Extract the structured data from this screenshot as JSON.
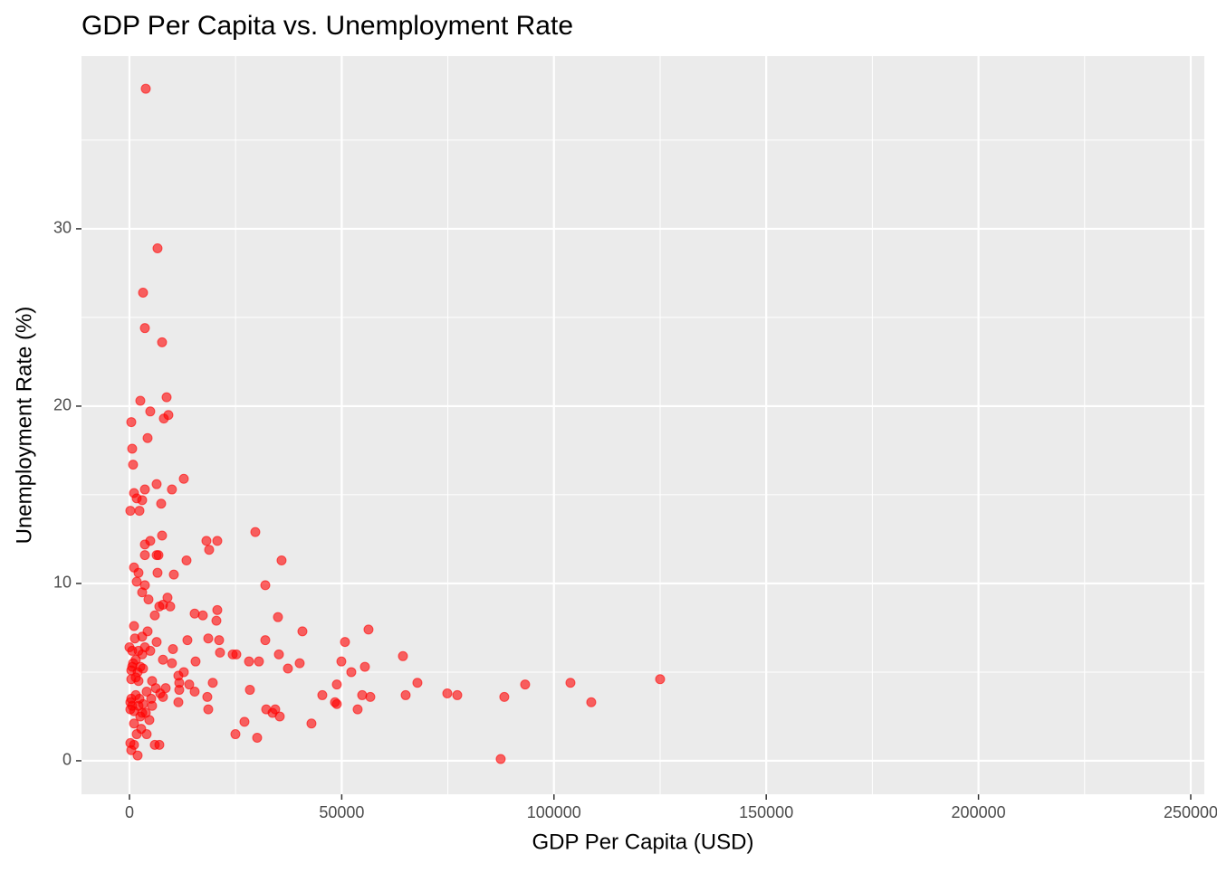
{
  "chart_data": {
    "type": "scatter",
    "title": "GDP Per Capita vs. Unemployment Rate",
    "x_label": "GDP Per Capita (USD)",
    "y_label": "Unemployment Rate (%)",
    "color": "#ff0000",
    "alpha": 0.6,
    "grid": true,
    "xlim": [
      -11300,
      253200
    ],
    "xticks": [
      0,
      50000,
      100000,
      150000,
      200000,
      250000
    ],
    "ylim": [
      -1.89,
      39.74
    ],
    "yticks": [
      0,
      10,
      20,
      30
    ],
    "x": [
      3840,
      6610,
      3200,
      3630,
      7680,
      2560,
      8750,
      4900,
      8100,
      9170,
      430,
      640,
      850,
      4270,
      6400,
      12800,
      3630,
      10000,
      1070,
      1710,
      2990,
      7470,
      210,
      2350,
      29650,
      7680,
      4900,
      3630,
      18130,
      20690,
      18770,
      6400,
      6830,
      3630,
      13440,
      35830,
      1070,
      2130,
      6610,
      10450,
      1710,
      3630,
      32000,
      2990,
      8960,
      4480,
      7040,
      7890,
      9600,
      20690,
      15360,
      17280,
      5970,
      34980,
      20480,
      1070,
      4270,
      40740,
      56310,
      2990,
      1280,
      18560,
      6400,
      13650,
      32000,
      21120,
      50770,
      0,
      10240,
      3630,
      4900,
      640,
      21330,
      2130,
      2990,
      24320,
      25170,
      35200,
      64420,
      1490,
      7890,
      850,
      10000,
      15570,
      28160,
      30500,
      40100,
      49920,
      640,
      2560,
      3200,
      37330,
      55460,
      52260,
      12800,
      430,
      1920,
      11520,
      1490,
      430,
      2130,
      5330,
      125000,
      103880,
      67830,
      11730,
      19620,
      14080,
      48850,
      93210,
      6190,
      8530,
      11730,
      28370,
      7250,
      1490,
      4050,
      15360,
      45430,
      54820,
      65060,
      74870,
      77220,
      56740,
      88300,
      18340,
      7890,
      430,
      2350,
      5120,
      210,
      48420,
      11520,
      108780,
      3200,
      640,
      48850,
      2130,
      5330,
      210,
      18560,
      34340,
      53750,
      32210,
      1070,
      2990,
      3840,
      33700,
      2560,
      35400,
      4690,
      27090,
      1070,
      42870,
      1710,
      4050,
      24960,
      30080,
      210,
      5970,
      7040,
      430,
      1920,
      87450,
      1070,
      2770
    ],
    "values": [
      37.9,
      28.9,
      26.4,
      24.4,
      23.6,
      20.3,
      20.5,
      19.7,
      19.3,
      19.5,
      19.1,
      17.6,
      16.7,
      18.2,
      15.6,
      15.9,
      15.3,
      15.3,
      15.1,
      14.8,
      14.7,
      14.5,
      14.1,
      14.1,
      12.9,
      12.7,
      12.4,
      12.2,
      12.4,
      12.4,
      11.9,
      11.6,
      11.6,
      11.6,
      11.3,
      11.3,
      10.9,
      10.6,
      10.6,
      10.5,
      10.1,
      9.9,
      9.9,
      9.5,
      9.2,
      9.1,
      8.7,
      8.8,
      8.7,
      8.5,
      8.3,
      8.2,
      8.2,
      8.1,
      7.9,
      7.6,
      7.3,
      7.3,
      7.4,
      7.0,
      6.9,
      6.9,
      6.7,
      6.8,
      6.8,
      6.8,
      6.7,
      6.4,
      6.3,
      6.4,
      6.2,
      6.2,
      6.1,
      6.2,
      6.0,
      6.0,
      6.0,
      6.0,
      5.9,
      5.7,
      5.7,
      5.5,
      5.5,
      5.6,
      5.6,
      5.6,
      5.5,
      5.6,
      5.3,
      5.3,
      5.2,
      5.2,
      5.3,
      5.0,
      5.0,
      5.1,
      5.0,
      4.8,
      4.7,
      4.6,
      4.5,
      4.5,
      4.6,
      4.4,
      4.4,
      4.4,
      4.4,
      4.3,
      4.3,
      4.3,
      4.1,
      4.1,
      4.0,
      4.0,
      3.8,
      3.7,
      3.9,
      3.9,
      3.7,
      3.7,
      3.7,
      3.8,
      3.7,
      3.6,
      3.6,
      3.6,
      3.6,
      3.5,
      3.5,
      3.5,
      3.3,
      3.3,
      3.3,
      3.3,
      3.2,
      3.1,
      3.2,
      3.1,
      3.1,
      2.9,
      2.9,
      2.9,
      2.9,
      2.9,
      2.8,
      2.7,
      2.7,
      2.7,
      2.5,
      2.5,
      2.3,
      2.2,
      2.1,
      2.1,
      1.5,
      1.5,
      1.5,
      1.3,
      1.0,
      0.9,
      0.9,
      0.6,
      0.3,
      0.1,
      0.9,
      1.8
    ]
  }
}
